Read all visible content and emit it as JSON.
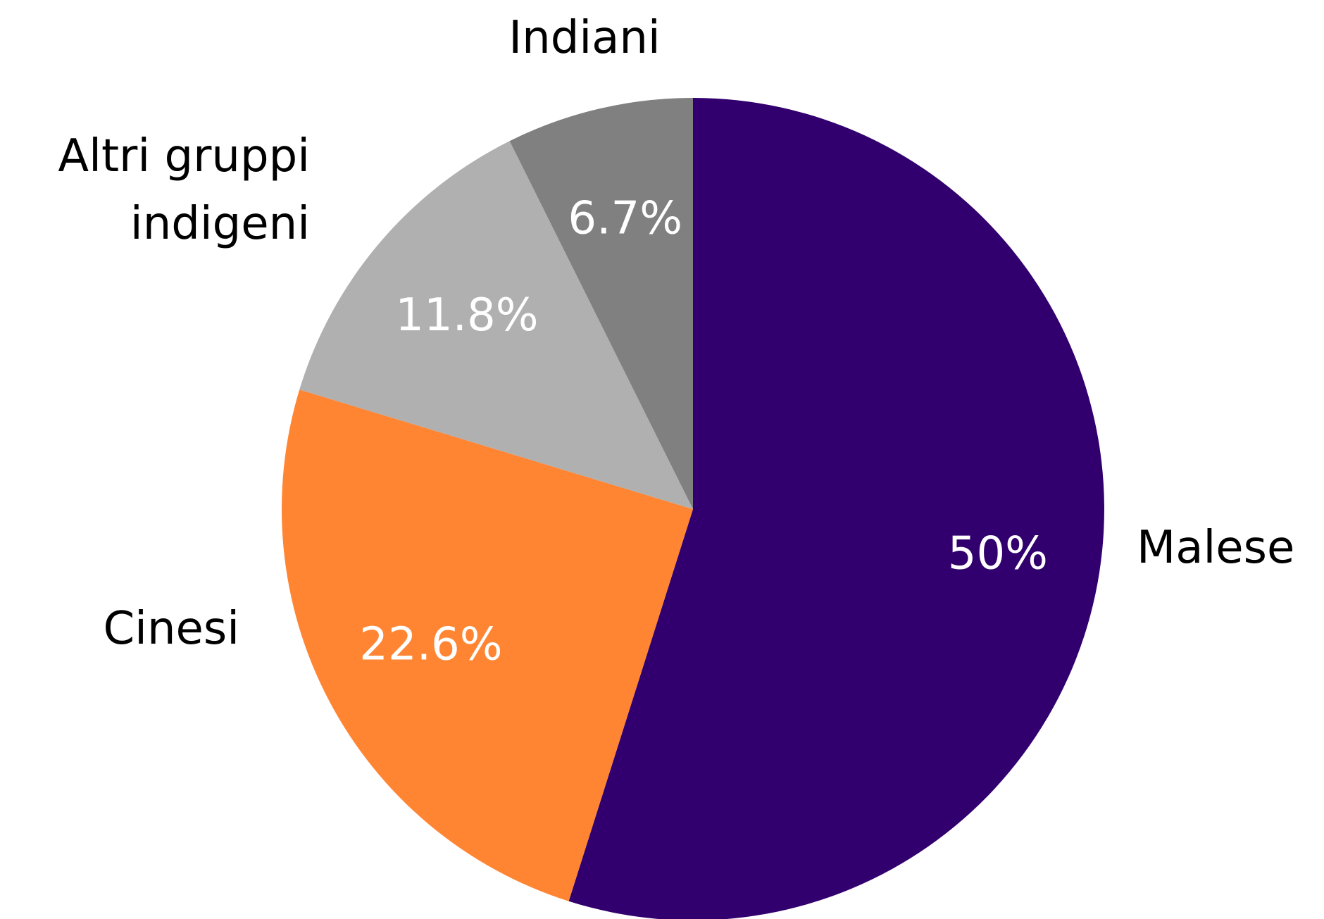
{
  "chart_data": {
    "type": "pie",
    "categories": [
      "Malese",
      "Cinesi",
      "Altri gruppi indigeni",
      "Indiani"
    ],
    "values": [
      50,
      22.6,
      11.8,
      6.7
    ],
    "value_labels": [
      "50%",
      "22.6%",
      "11.8%",
      "6.7%"
    ],
    "colors": [
      "#32006e",
      "#ff8533",
      "#b0b0b0",
      "#808080"
    ]
  }
}
